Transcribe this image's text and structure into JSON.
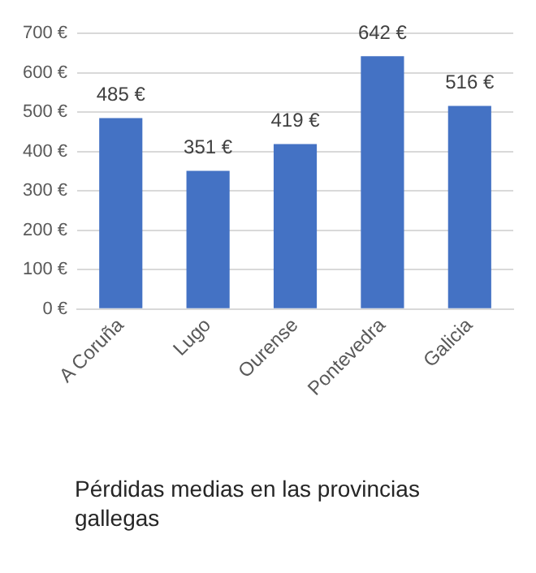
{
  "chart_data": {
    "type": "bar",
    "categories": [
      "A Coruña",
      "Lugo",
      "Ourense",
      "Pontevedra",
      "Galicia"
    ],
    "values": [
      485,
      351,
      419,
      642,
      516
    ],
    "value_labels": [
      "485 €",
      "351 €",
      "419 €",
      "642 €",
      "516 €"
    ],
    "color": "#4472c4",
    "ylim": [
      0,
      700
    ],
    "yticks": [
      {
        "value": 0,
        "label": "0 €"
      },
      {
        "value": 100,
        "label": "100 €"
      },
      {
        "value": 200,
        "label": "200 €"
      },
      {
        "value": 300,
        "label": "300 €"
      },
      {
        "value": 400,
        "label": "400 €"
      },
      {
        "value": 500,
        "label": "500 €"
      },
      {
        "value": 600,
        "label": "600 €"
      },
      {
        "value": 700,
        "label": "700 €"
      }
    ],
    "grid": "y",
    "annotations": [
      "Pérdidas medias en las provincias gallegas"
    ]
  }
}
